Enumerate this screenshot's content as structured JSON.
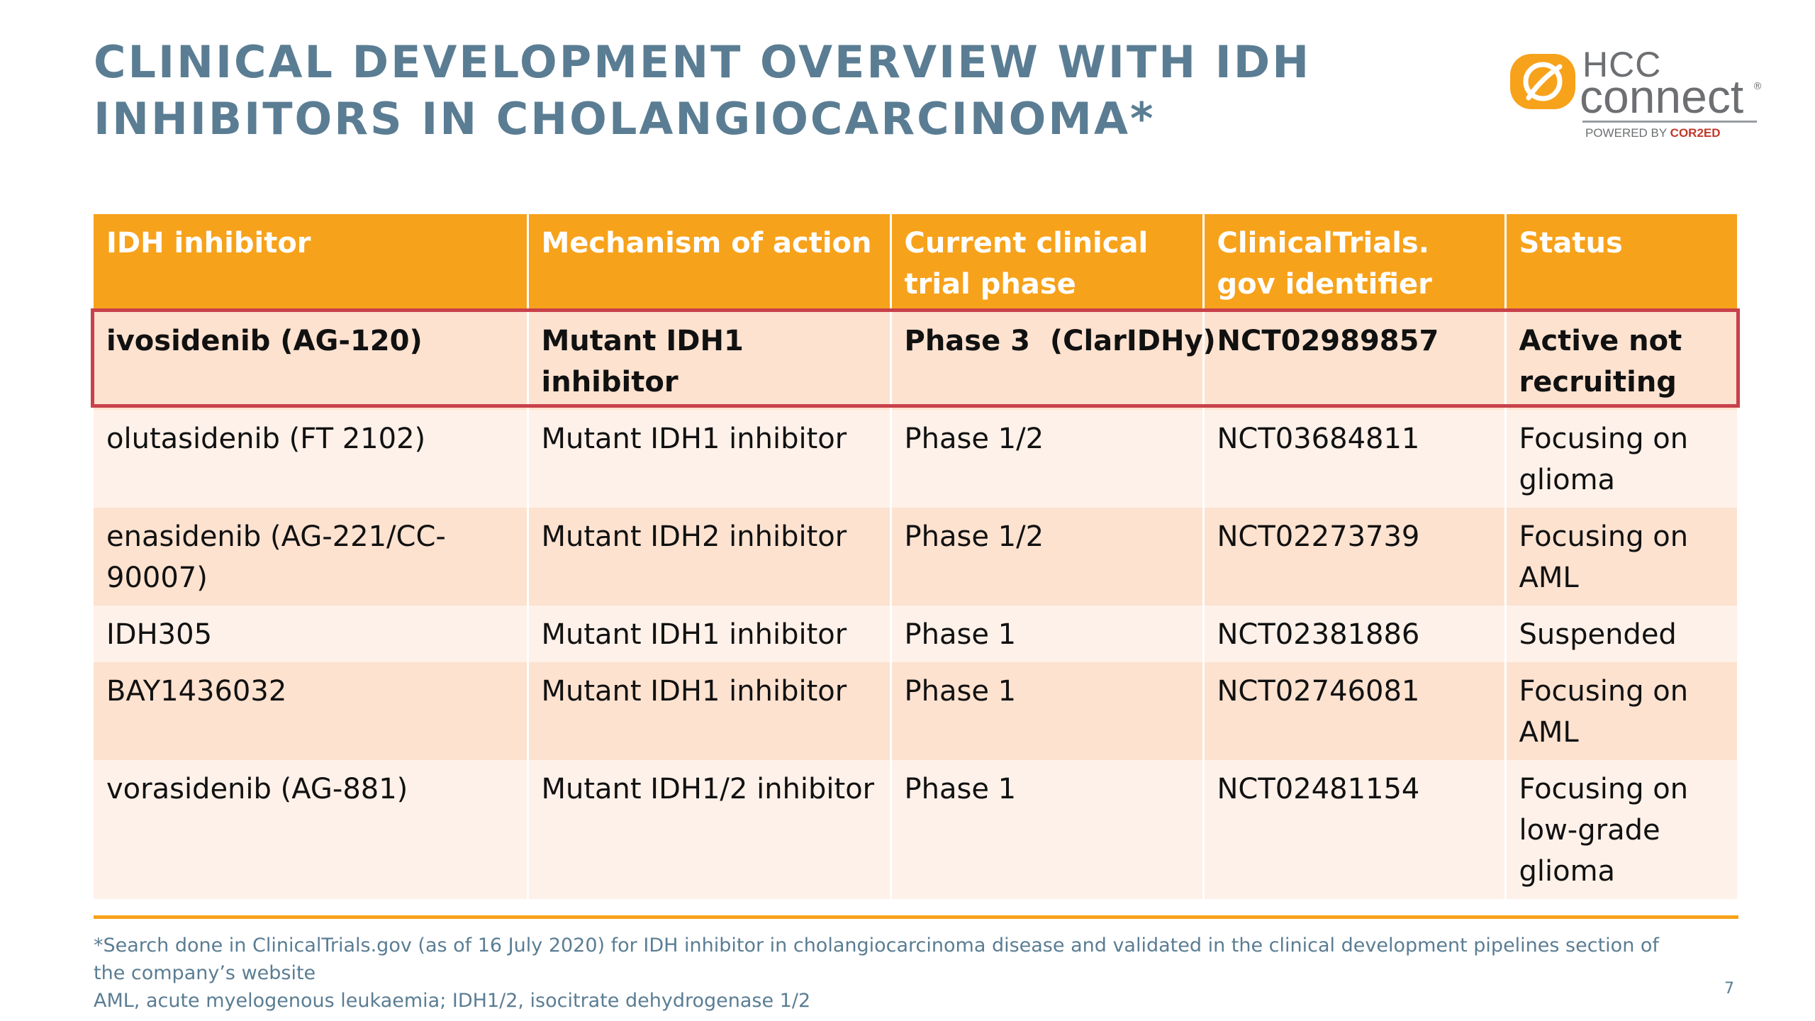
{
  "title": {
    "line1": "CLINICAL DEVELOPMENT OVERVIEW WITH IDH",
    "line2": "INHIBITORS IN CHOLANGIOCARCINOMA*"
  },
  "logo": {
    "hcc": "HCC",
    "connect": "connect",
    "registered": "®",
    "powered_by": "POWERED BY",
    "brand": "COR2ED",
    "accent_color": "#f7a21b"
  },
  "table": {
    "headers": [
      "IDH inhibitor",
      "Mechanism of action",
      "Current clinical trial phase",
      "ClinicalTrials. gov identifier",
      "Status"
    ],
    "rows": [
      [
        "ivosidenib (AG-120)",
        "Mutant IDH1 inhibitor",
        "Phase 3  (ClarIDHy)",
        "NCT02989857",
        "Active not recruiting"
      ],
      [
        "olutasidenib (FT 2102)",
        "Mutant IDH1 inhibitor",
        "Phase 1/2",
        "NCT03684811",
        "Focusing on glioma"
      ],
      [
        "enasidenib (AG-221/CC-90007)",
        "Mutant IDH2 inhibitor",
        "Phase 1/2",
        "NCT02273739",
        "Focusing on AML"
      ],
      [
        "IDH305",
        "Mutant IDH1 inhibitor",
        "Phase 1",
        "NCT02381886",
        "Suspended"
      ],
      [
        "BAY1436032",
        "Mutant IDH1 inhibitor",
        "Phase 1",
        "NCT02746081",
        "Focusing on AML"
      ],
      [
        "vorasidenib (AG-881)",
        "Mutant IDH1/2 inhibitor",
        "Phase 1",
        "NCT02481154",
        "Focusing on low-grade glioma"
      ]
    ],
    "header_color": "#f7a21b",
    "highlight_border_color": "#c8414b"
  },
  "footnotes": {
    "search_note": "*Search done in ClinicalTrials.gov (as of 16 July 2020) for IDH inhibitor in cholangiocarcinoma disease and validated in the clinical development pipelines section of the company’s website",
    "abbreviations": "AML, acute myelogenous leukaemia; IDH1/2, isocitrate dehydrogenase 1/2"
  },
  "page_number": "7"
}
